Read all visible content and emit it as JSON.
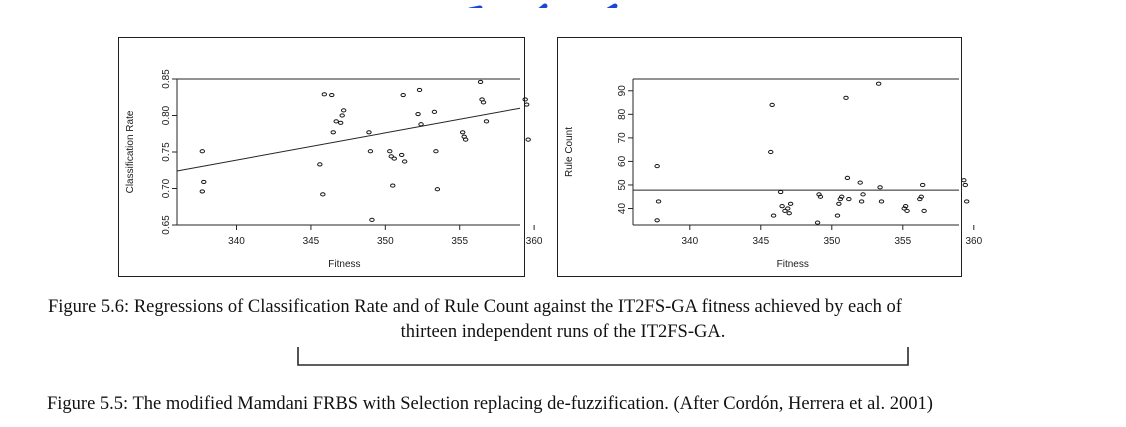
{
  "page": {
    "background": "#ffffff",
    "text_color": "#111111",
    "accent_blue": "#1f45d8"
  },
  "captions": {
    "figure_5_6_line1": "Figure 5.6: Regressions of Classification Rate and of Rule Count against the IT2FS-GA fitness achieved by each of",
    "figure_5_6_line2": "thirteen independent runs of the IT2FS-GA.",
    "figure_5_5": "Figure 5.5: The modified Mamdani FRBS with Selection replacing de-fuzzification. (After Cordón, Herrera et al. 2001)"
  },
  "chart_data": [
    {
      "type": "scatter",
      "title": "",
      "xlabel": "Fitness",
      "ylabel": "Classification Rate",
      "xlim": [
        336,
        361
      ],
      "ylim": [
        0.65,
        0.85
      ],
      "xticks": [
        340,
        345,
        350,
        355,
        360
      ],
      "yticks": [
        0.65,
        0.7,
        0.75,
        0.8,
        0.85
      ],
      "ytick_labels": [
        "0.65",
        "0.70",
        "0.75",
        "0.80",
        "0.85"
      ],
      "grid": false,
      "series": [
        {
          "x": [
            337.7,
            337.8,
            337.7,
            345.6,
            345.8,
            345.9,
            346.4,
            346.5,
            346.7,
            347.0,
            347.1,
            347.2,
            348.9,
            349.0,
            349.1,
            350.3,
            350.4,
            350.5,
            350.6,
            351.1,
            351.2,
            351.3,
            352.2,
            352.3,
            352.4,
            353.3,
            353.4,
            353.5,
            355.2,
            355.3,
            355.4,
            356.4,
            356.5,
            356.6,
            356.8,
            359.4,
            359.5,
            359.6
          ],
          "y": [
            0.751,
            0.709,
            0.696,
            0.733,
            0.692,
            0.829,
            0.828,
            0.777,
            0.792,
            0.79,
            0.8,
            0.807,
            0.777,
            0.751,
            0.657,
            0.751,
            0.744,
            0.704,
            0.741,
            0.746,
            0.828,
            0.737,
            0.802,
            0.835,
            0.788,
            0.805,
            0.751,
            0.699,
            0.777,
            0.771,
            0.767,
            0.846,
            0.822,
            0.818,
            0.792,
            0.822,
            0.815,
            0.767
          ]
        }
      ],
      "regression_line": {
        "x": [
          336,
          361
        ],
        "y": [
          0.724,
          0.81
        ]
      }
    },
    {
      "type": "scatter",
      "title": "",
      "xlabel": "Fitness",
      "ylabel": "Rule Count",
      "xlim": [
        336,
        361
      ],
      "ylim": [
        33,
        95
      ],
      "xticks": [
        340,
        345,
        350,
        355,
        360
      ],
      "yticks": [
        40,
        50,
        60,
        70,
        80,
        90
      ],
      "ytick_labels": [
        "40",
        "50",
        "60",
        "70",
        "80",
        "90"
      ],
      "grid": false,
      "series": [
        {
          "x": [
            337.7,
            337.8,
            337.7,
            345.7,
            345.8,
            345.9,
            346.4,
            346.5,
            346.7,
            346.9,
            347.0,
            347.1,
            349.0,
            349.1,
            349.2,
            350.4,
            350.5,
            350.6,
            350.7,
            351.0,
            351.1,
            351.2,
            352.0,
            352.1,
            352.2,
            353.3,
            353.4,
            353.5,
            355.1,
            355.2,
            355.3,
            356.2,
            356.3,
            356.4,
            356.5,
            359.3,
            359.4,
            359.5
          ],
          "y": [
            58,
            43,
            35,
            64,
            84,
            37,
            47,
            41,
            39,
            40,
            38,
            42,
            34,
            46,
            45,
            37,
            42,
            44,
            45,
            87,
            53,
            44,
            51,
            43,
            46,
            93,
            49,
            43,
            40,
            41,
            39,
            44,
            45,
            50,
            39,
            52,
            50,
            43
          ]
        }
      ],
      "regression_line": {
        "x": [
          336,
          361
        ],
        "y": [
          47.8,
          47.8
        ]
      }
    }
  ]
}
